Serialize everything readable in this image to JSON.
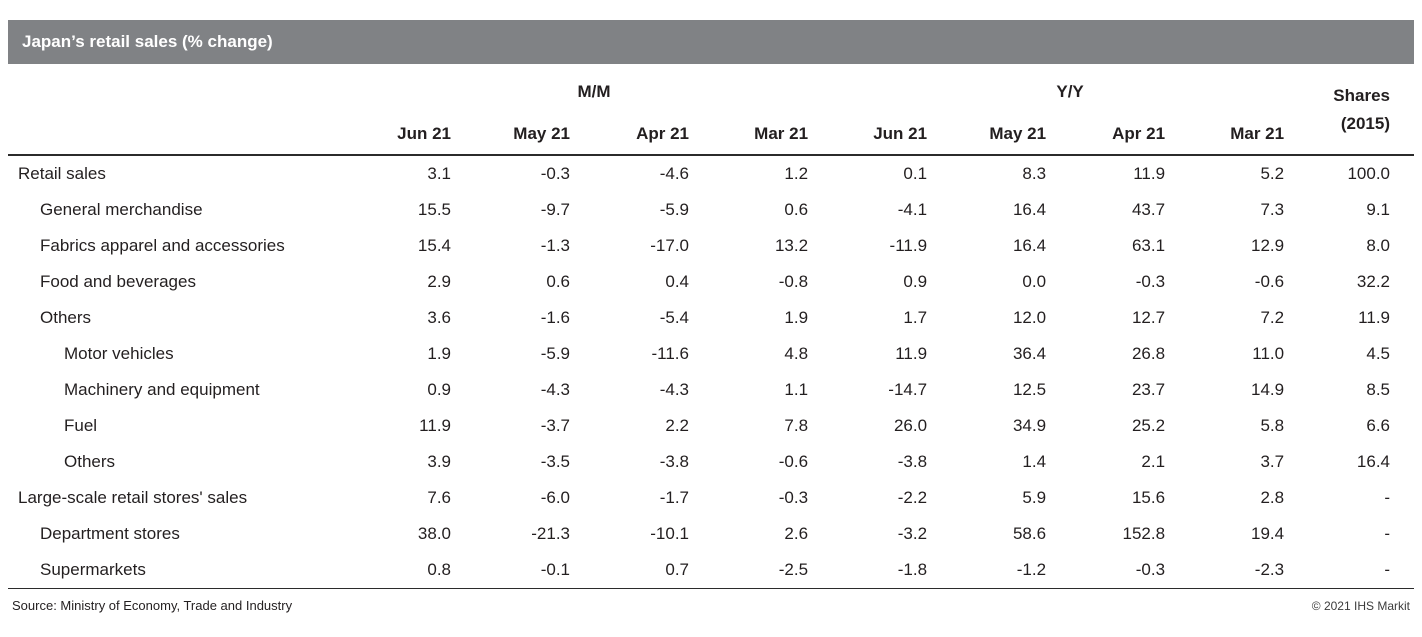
{
  "title_bar": {
    "title": "Japan’s retail sales (% change)",
    "bg_color": "#808285",
    "text_color": "#ffffff"
  },
  "footer": {
    "source": "Source: Ministry of Economy, Trade and Industry",
    "copyright": "© 2021 IHS Markit"
  },
  "chart_data": {
    "type": "table",
    "title": "Japan’s retail sales (% change)",
    "column_groups": [
      {
        "label": "M/M",
        "span": 4
      },
      {
        "label": "Y/Y",
        "span": 4
      },
      {
        "label": "Shares",
        "sublabel": "(2015)",
        "span": 1
      }
    ],
    "columns": [
      "Jun 21",
      "May 21",
      "Apr 21",
      "Mar 21",
      "Jun 21",
      "May 21",
      "Apr 21",
      "Mar 21"
    ],
    "rows": [
      {
        "label": "Retail sales",
        "indent": 0,
        "values": [
          "3.1",
          "-0.3",
          "-4.6",
          "1.2",
          "0.1",
          "8.3",
          "11.9",
          "5.2",
          "100.0"
        ]
      },
      {
        "label": "General merchandise",
        "indent": 1,
        "values": [
          "15.5",
          "-9.7",
          "-5.9",
          "0.6",
          "-4.1",
          "16.4",
          "43.7",
          "7.3",
          "9.1"
        ]
      },
      {
        "label": "Fabrics apparel and accessories",
        "indent": 1,
        "values": [
          "15.4",
          "-1.3",
          "-17.0",
          "13.2",
          "-11.9",
          "16.4",
          "63.1",
          "12.9",
          "8.0"
        ]
      },
      {
        "label": "Food and beverages",
        "indent": 1,
        "values": [
          "2.9",
          "0.6",
          "0.4",
          "-0.8",
          "0.9",
          "0.0",
          "-0.3",
          "-0.6",
          "32.2"
        ]
      },
      {
        "label": "Others",
        "indent": 1,
        "values": [
          "3.6",
          "-1.6",
          "-5.4",
          "1.9",
          "1.7",
          "12.0",
          "12.7",
          "7.2",
          "11.9"
        ]
      },
      {
        "label": "Motor vehicles",
        "indent": 2,
        "values": [
          "1.9",
          "-5.9",
          "-11.6",
          "4.8",
          "11.9",
          "36.4",
          "26.8",
          "11.0",
          "4.5"
        ]
      },
      {
        "label": "Machinery and equipment",
        "indent": 2,
        "values": [
          "0.9",
          "-4.3",
          "-4.3",
          "1.1",
          "-14.7",
          "12.5",
          "23.7",
          "14.9",
          "8.5"
        ]
      },
      {
        "label": "Fuel",
        "indent": 2,
        "values": [
          "11.9",
          "-3.7",
          "2.2",
          "7.8",
          "26.0",
          "34.9",
          "25.2",
          "5.8",
          "6.6"
        ]
      },
      {
        "label": "Others",
        "indent": 2,
        "values": [
          "3.9",
          "-3.5",
          "-3.8",
          "-0.6",
          "-3.8",
          "1.4",
          "2.1",
          "3.7",
          "16.4"
        ]
      },
      {
        "label": "Large-scale retail stores' sales",
        "indent": 0,
        "values": [
          "7.6",
          "-6.0",
          "-1.7",
          "-0.3",
          "-2.2",
          "5.9",
          "15.6",
          "2.8",
          "-"
        ]
      },
      {
        "label": "Department stores",
        "indent": 1,
        "values": [
          "38.0",
          "-21.3",
          "-10.1",
          "2.6",
          "-3.2",
          "58.6",
          "152.8",
          "19.4",
          "-"
        ]
      },
      {
        "label": "Supermarkets",
        "indent": 1,
        "values": [
          "0.8",
          "-0.1",
          "0.7",
          "-2.5",
          "-1.8",
          "-1.2",
          "-0.3",
          "-2.3",
          "-"
        ]
      }
    ]
  }
}
